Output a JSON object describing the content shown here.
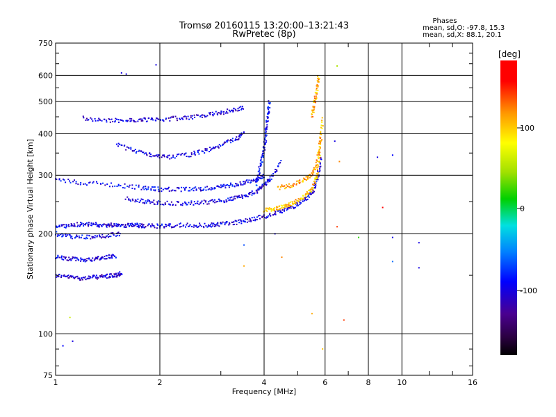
{
  "header": {
    "title": "Tromsø 20160115 13:20:00–13:21:43",
    "subtitle": "RwPretec (8p)",
    "phases_title": "Phases",
    "phases_o": "mean, sd,O: -97.8, 15.3",
    "phases_x": "mean, sd,X:  88.1, 20.1"
  },
  "colorbar": {
    "label": "[deg]",
    "ticks": [
      "100",
      "0",
      "-100"
    ]
  },
  "chart_data": {
    "type": "scatter",
    "title": "Tromsø 20160115 13:20:00–13:21:43",
    "subtitle": "RwPretec (8p)",
    "xlabel": "Frequency [MHz]",
    "ylabel": "Stationary phase Virtual Height [km]",
    "xscale": "log",
    "yscale": "log",
    "xlim": [
      1,
      16
    ],
    "ylim": [
      75,
      750
    ],
    "xticks": [
      "1",
      "2",
      "4",
      "6",
      "8",
      "10",
      "16"
    ],
    "yticks": [
      "750",
      "600",
      "500",
      "400",
      "300",
      "200",
      "100",
      "75"
    ],
    "grid": true,
    "colorbar": {
      "label": "[deg]",
      "range": [
        -180,
        180
      ],
      "ticks": [
        100,
        0,
        -100
      ]
    },
    "series": [
      {
        "x": [
          1.0,
          1.1,
          1.2,
          1.3,
          1.4,
          1.5,
          1.55
        ],
        "y": [
          150,
          148,
          147,
          148,
          149,
          150,
          152
        ],
        "phase": -110
      },
      {
        "x": [
          1.0,
          1.1,
          1.2,
          1.3,
          1.4,
          1.5
        ],
        "y": [
          170,
          168,
          167,
          168,
          170,
          172
        ],
        "phase": -100
      },
      {
        "x": [
          1.0,
          1.1,
          1.25,
          1.4,
          1.55
        ],
        "y": [
          200,
          196,
          195,
          197,
          200
        ],
        "phase": -95
      },
      {
        "x": [
          1.0,
          1.1,
          1.2,
          1.3,
          1.4,
          1.5,
          1.6,
          1.7,
          1.8,
          2.0,
          2.2,
          2.5,
          2.8,
          3.0,
          3.3,
          3.6,
          4.0,
          4.4,
          4.8,
          5.2,
          5.5,
          5.7,
          5.85
        ],
        "y": [
          210,
          212,
          214,
          213,
          212,
          213,
          212,
          212,
          211,
          211,
          212,
          212,
          212,
          214,
          216,
          220,
          225,
          232,
          240,
          252,
          265,
          290,
          340
        ],
        "phase": -100
      },
      {
        "x": [
          1.0,
          1.2,
          1.5,
          1.8,
          2.0,
          2.3,
          2.6,
          2.9,
          3.2,
          3.5,
          3.8,
          4.0
        ],
        "y": [
          290,
          285,
          280,
          275,
          272,
          272,
          273,
          276,
          280,
          285,
          292,
          300
        ],
        "phase": -95
      },
      {
        "x": [
          1.6,
          1.8,
          2.0,
          2.3,
          2.6,
          2.9,
          3.2,
          3.5,
          3.8,
          4.0,
          4.2,
          4.5
        ],
        "y": [
          255,
          250,
          248,
          247,
          248,
          250,
          254,
          260,
          268,
          280,
          295,
          330
        ],
        "phase": -100
      },
      {
        "x": [
          1.2,
          1.4,
          1.6,
          1.8,
          2.0,
          2.3,
          2.6,
          2.9,
          3.2,
          3.5
        ],
        "y": [
          445,
          440,
          438,
          440,
          442,
          446,
          452,
          460,
          470,
          480
        ],
        "phase": -105
      },
      {
        "x": [
          1.5,
          1.7,
          1.9,
          2.1,
          2.4,
          2.7,
          3.0,
          3.3,
          3.5
        ],
        "y": [
          370,
          355,
          345,
          340,
          345,
          355,
          370,
          385,
          400
        ],
        "phase": -100
      },
      {
        "x": [
          3.8,
          3.9,
          4.0,
          4.05,
          4.1,
          4.15
        ],
        "y": [
          280,
          320,
          360,
          400,
          450,
          500
        ],
        "phase": -90
      },
      {
        "x": [
          4.0,
          4.3,
          4.6,
          4.9,
          5.2,
          5.5,
          5.7,
          5.8,
          5.9
        ],
        "y": [
          235,
          238,
          242,
          248,
          258,
          272,
          300,
          360,
          450
        ],
        "phase": 100
      },
      {
        "x": [
          4.4,
          4.8,
          5.2,
          5.5,
          5.7,
          5.85
        ],
        "y": [
          275,
          280,
          290,
          300,
          330,
          400
        ],
        "phase": 110
      },
      {
        "x": [
          5.5,
          5.6,
          5.7,
          5.75
        ],
        "y": [
          450,
          500,
          550,
          600
        ],
        "phase": 110
      }
    ],
    "scattered_echoes": [
      {
        "x": 1.05,
        "y": 92,
        "phase": -90
      },
      {
        "x": 1.12,
        "y": 95,
        "phase": -100
      },
      {
        "x": 1.1,
        "y": 112,
        "phase": 60
      },
      {
        "x": 1.55,
        "y": 610,
        "phase": -100
      },
      {
        "x": 1.6,
        "y": 605,
        "phase": -100
      },
      {
        "x": 1.95,
        "y": 645,
        "phase": -100
      },
      {
        "x": 3.5,
        "y": 185,
        "phase": -70
      },
      {
        "x": 3.5,
        "y": 160,
        "phase": 110
      },
      {
        "x": 4.3,
        "y": 200,
        "phase": -100
      },
      {
        "x": 4.5,
        "y": 170,
        "phase": 120
      },
      {
        "x": 5.5,
        "y": 115,
        "phase": 110
      },
      {
        "x": 5.9,
        "y": 90,
        "phase": 100
      },
      {
        "x": 6.5,
        "y": 640,
        "phase": 50
      },
      {
        "x": 6.4,
        "y": 380,
        "phase": -100
      },
      {
        "x": 6.6,
        "y": 330,
        "phase": 120
      },
      {
        "x": 6.5,
        "y": 210,
        "phase": 140
      },
      {
        "x": 6.8,
        "y": 110,
        "phase": 140
      },
      {
        "x": 7.5,
        "y": 195,
        "phase": 20
      },
      {
        "x": 8.5,
        "y": 340,
        "phase": -100
      },
      {
        "x": 8.8,
        "y": 240,
        "phase": 160
      },
      {
        "x": 9.4,
        "y": 345,
        "phase": -90
      },
      {
        "x": 9.4,
        "y": 195,
        "phase": -100
      },
      {
        "x": 9.4,
        "y": 165,
        "phase": -60
      },
      {
        "x": 11.2,
        "y": 188,
        "phase": -100
      },
      {
        "x": 11.2,
        "y": 158,
        "phase": -100
      }
    ]
  }
}
